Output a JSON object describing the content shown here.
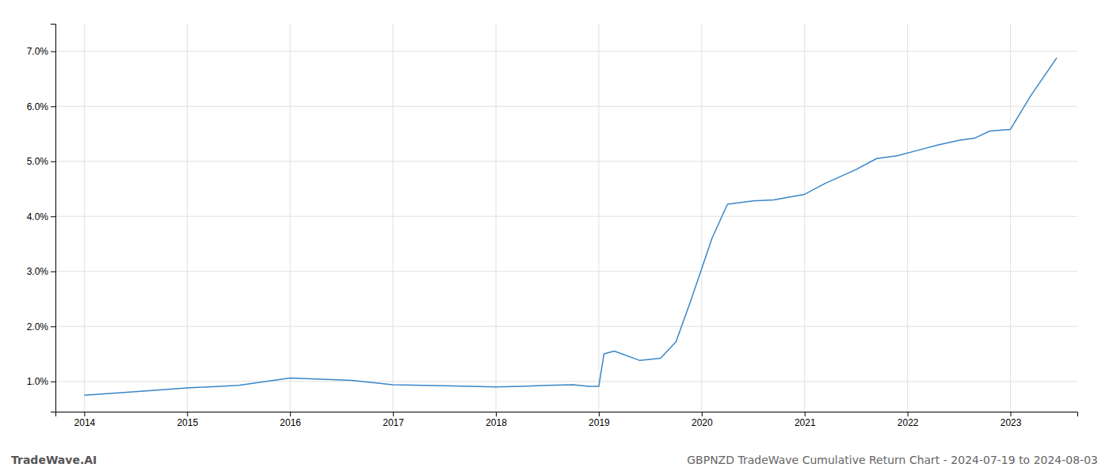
{
  "chart_data": {
    "type": "line",
    "title": "GBPNZD TradeWave Cumulative Return Chart - 2024-07-19 to 2024-08-03",
    "annotations": [
      "TradeWave.AI"
    ],
    "color": "#3a86c8",
    "grid": true,
    "x": [
      2014.0,
      2014.55,
      2015.0,
      2015.5,
      2016.0,
      2016.6,
      2017.0,
      2017.5,
      2018.0,
      2018.25,
      2018.5,
      2018.75,
      2018.9,
      2019.0,
      2019.05,
      2019.15,
      2019.4,
      2019.6,
      2019.75,
      2019.9,
      2020.1,
      2020.25,
      2020.5,
      2020.7,
      2021.0,
      2021.2,
      2021.5,
      2021.7,
      2021.9,
      2022.1,
      2022.3,
      2022.5,
      2022.65,
      2022.8,
      2023.0,
      2023.2,
      2023.45
    ],
    "values": [
      0.75,
      0.82,
      0.88,
      0.93,
      1.06,
      1.02,
      0.94,
      0.92,
      0.9,
      0.91,
      0.93,
      0.94,
      0.91,
      0.91,
      1.5,
      1.55,
      1.38,
      1.42,
      1.72,
      2.5,
      3.6,
      4.22,
      4.28,
      4.3,
      4.4,
      4.6,
      4.85,
      5.05,
      5.1,
      5.2,
      5.3,
      5.38,
      5.42,
      5.55,
      5.58,
      6.2,
      6.88
    ],
    "xlim": [
      2013.72,
      2023.65
    ],
    "xticks": [
      2014,
      2015,
      2016,
      2017,
      2018,
      2019,
      2020,
      2021,
      2022,
      2023
    ],
    "ylim": [
      0.45,
      7.5
    ],
    "yticks": [
      {
        "value": 1.0,
        "label": "1.0%"
      },
      {
        "value": 2.0,
        "label": "2.0%"
      },
      {
        "value": 3.0,
        "label": "3.0%"
      },
      {
        "value": 4.0,
        "label": "4.0%"
      },
      {
        "value": 5.0,
        "label": "5.0%"
      },
      {
        "value": 6.0,
        "label": "6.0%"
      },
      {
        "value": 7.0,
        "label": "7.0%"
      }
    ]
  }
}
